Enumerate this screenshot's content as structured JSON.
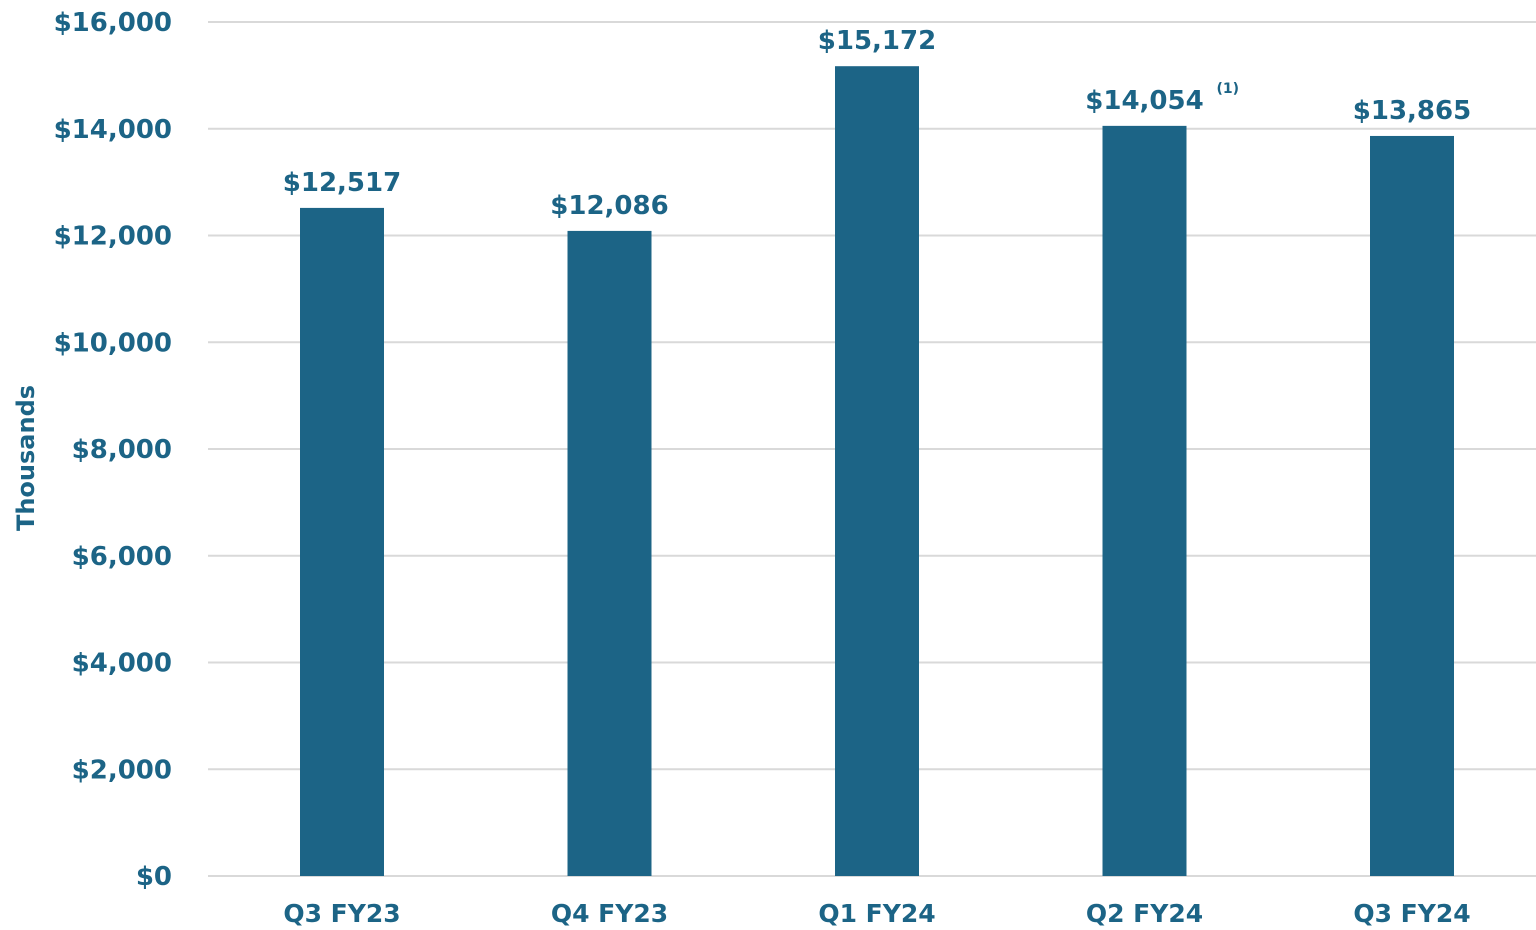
{
  "colors": {
    "bar": "#1c6486",
    "text": "#1c6486",
    "grid": "#d9d9d9"
  },
  "chart_data": {
    "type": "bar",
    "title": "",
    "xlabel": "",
    "ylabel": "Thousands",
    "categories": [
      "Q3 FY23",
      "Q4 FY23",
      "Q1 FY24",
      "Q2 FY24",
      "Q3 FY24"
    ],
    "values": [
      12517,
      12086,
      15172,
      14054,
      13865
    ],
    "data_labels": [
      "$12,517",
      "$12,086",
      "$15,172",
      "$14,054",
      "$13,865"
    ],
    "footnotes": [
      null,
      null,
      null,
      "(1)",
      null
    ],
    "ylim": [
      0,
      16000
    ],
    "y_ticks": [
      0,
      2000,
      4000,
      6000,
      8000,
      10000,
      12000,
      14000,
      16000
    ],
    "y_tick_labels": [
      "$0",
      "$2,000",
      "$4,000",
      "$6,000",
      "$8,000",
      "$10,000",
      "$12,000",
      "$14,000",
      "$16,000"
    ],
    "grid": true,
    "legend": "none"
  }
}
